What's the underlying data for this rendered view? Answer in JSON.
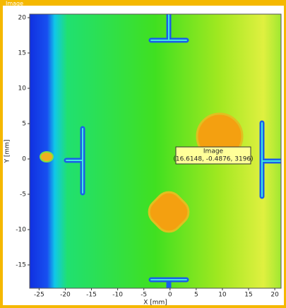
{
  "chart_data": {
    "type": "image",
    "title": "Image",
    "x_label": "X [mm]",
    "y_label": "Y [mm]",
    "xlim": [
      -26.8,
      21.2
    ],
    "ylim": [
      -18.3,
      20.5
    ],
    "xticks": [
      -25,
      -20,
      -15,
      -10,
      -5,
      0,
      5,
      10,
      15,
      20
    ],
    "yticks": [
      -15,
      -10,
      -5,
      0,
      5,
      10,
      15,
      20
    ],
    "tooltip": {
      "title": "Image",
      "text": "(16.6148, -0.4876, 3196)"
    }
  }
}
